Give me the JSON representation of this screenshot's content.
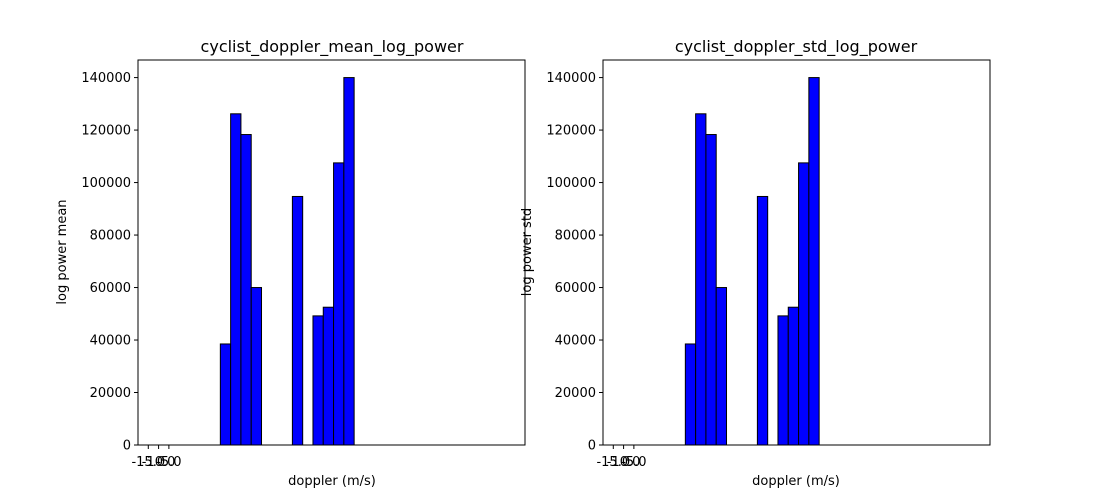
{
  "chart_data": [
    {
      "type": "bar",
      "title": "cyclist_doppler_mean_log_power",
      "xlabel": "doppler (m/s)",
      "ylabel": "log power mean",
      "xtick_labels": [
        "-15.0",
        "-10.0",
        "-5.0"
      ],
      "xtick_values": [
        -15,
        -10,
        -5
      ],
      "ylim": [
        0,
        146700
      ],
      "yticks": [
        0,
        20000,
        40000,
        60000,
        80000,
        100000,
        120000,
        140000
      ],
      "bars": [
        {
          "x": 20,
          "value": 38500
        },
        {
          "x": 25,
          "value": 126200
        },
        {
          "x": 30,
          "value": 118300
        },
        {
          "x": 35,
          "value": 60000
        },
        {
          "x": 55,
          "value": 94700
        },
        {
          "x": 65,
          "value": 49200
        },
        {
          "x": 70,
          "value": 52500
        },
        {
          "x": 75,
          "value": 107500
        },
        {
          "x": 80,
          "value": 140000
        }
      ],
      "bar_width": 5,
      "baseline_x_range": [
        -15,
        160
      ],
      "xlim": [
        -20,
        168
      ],
      "bar_color": "#0000ff",
      "edge_color": "#000000",
      "grid": false,
      "legend": false
    },
    {
      "type": "bar",
      "title": "cyclist_doppler_std_log_power",
      "xlabel": "doppler (m/s)",
      "ylabel": "log power std",
      "xtick_labels": [
        "-15.0",
        "-10.0",
        "-5.0"
      ],
      "xtick_values": [
        -15,
        -10,
        -5
      ],
      "ylim": [
        0,
        146700
      ],
      "yticks": [
        0,
        20000,
        40000,
        60000,
        80000,
        100000,
        120000,
        140000
      ],
      "bars": [
        {
          "x": 20,
          "value": 38500
        },
        {
          "x": 25,
          "value": 126200
        },
        {
          "x": 30,
          "value": 118300
        },
        {
          "x": 35,
          "value": 60000
        },
        {
          "x": 55,
          "value": 94700
        },
        {
          "x": 65,
          "value": 49200
        },
        {
          "x": 70,
          "value": 52500
        },
        {
          "x": 75,
          "value": 107500
        },
        {
          "x": 80,
          "value": 140000
        }
      ],
      "bar_width": 5,
      "baseline_x_range": [
        -15,
        160
      ],
      "xlim": [
        -20,
        168
      ],
      "bar_color": "#0000ff",
      "edge_color": "#000000",
      "grid": false,
      "legend": false
    }
  ]
}
